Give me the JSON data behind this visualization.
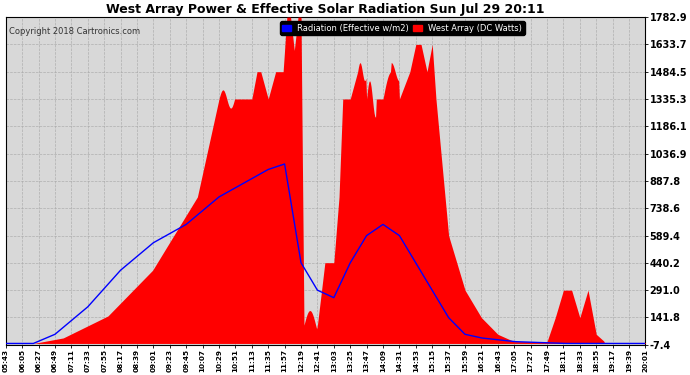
{
  "title": "West Array Power & Effective Solar Radiation Sun Jul 29 20:11",
  "copyright": "Copyright 2018 Cartronics.com",
  "legend_radiation": "Radiation (Effective w/m2)",
  "legend_west": "West Array (DC Watts)",
  "yticks": [
    -7.4,
    141.8,
    291.0,
    440.2,
    589.4,
    738.6,
    887.8,
    1036.9,
    1186.1,
    1335.3,
    1484.5,
    1633.7,
    1782.9
  ],
  "ymin": -7.4,
  "ymax": 1782.9,
  "bg_color": "#ffffff",
  "plot_bg_color": "#d8d8d8",
  "grid_color": "#aaaaaa",
  "red_fill_color": "#ff0000",
  "blue_line_color": "#0000ff",
  "title_color": "#000000"
}
